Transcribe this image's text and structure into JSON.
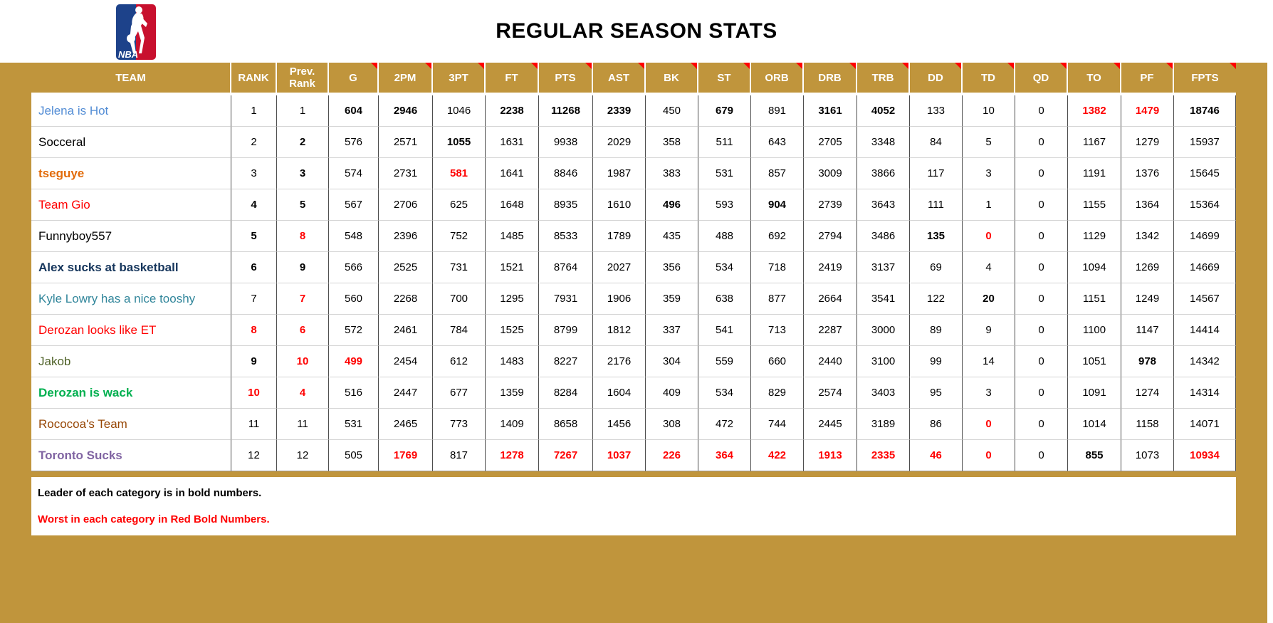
{
  "title": "REGULAR SEASON STATS",
  "logo": {
    "name": "NBA",
    "blue": "#1D428A",
    "red": "#C8102E"
  },
  "colors": {
    "gold": "#C0953C",
    "red": "#FF0000",
    "header_text": "#FFFFFF"
  },
  "notes": {
    "leader": "Leader of each category is in bold numbers.",
    "worst": "Worst in each category in Red Bold Numbers."
  },
  "table": {
    "columns": [
      {
        "label": "TEAM",
        "marker": false
      },
      {
        "label": "RANK",
        "marker": false
      },
      {
        "label": "Prev. Rank",
        "marker": false
      },
      {
        "label": "G",
        "marker": true
      },
      {
        "label": "2PM",
        "marker": true
      },
      {
        "label": "3PT",
        "marker": true
      },
      {
        "label": "FT",
        "marker": true
      },
      {
        "label": "PTS",
        "marker": true
      },
      {
        "label": "AST",
        "marker": true
      },
      {
        "label": "BK",
        "marker": true
      },
      {
        "label": "ST",
        "marker": true
      },
      {
        "label": "ORB",
        "marker": true
      },
      {
        "label": "DRB",
        "marker": true
      },
      {
        "label": "TRB",
        "marker": true
      },
      {
        "label": "DD",
        "marker": true
      },
      {
        "label": "TD",
        "marker": true
      },
      {
        "label": "QD",
        "marker": true
      },
      {
        "label": "TO",
        "marker": true
      },
      {
        "label": "PF",
        "marker": true
      },
      {
        "label": "FPTS",
        "marker": true
      }
    ],
    "style_legend": {
      "n": "normal",
      "b": "bold-leader",
      "rb": "red-bold-worst"
    },
    "rows": [
      {
        "team": "Jelena is Hot",
        "color": "#538DD5",
        "bold": false,
        "cells": [
          [
            "1",
            "n"
          ],
          [
            "1",
            "n"
          ],
          [
            "604",
            "b"
          ],
          [
            "2946",
            "b"
          ],
          [
            "1046",
            "n"
          ],
          [
            "2238",
            "b"
          ],
          [
            "11268",
            "b"
          ],
          [
            "2339",
            "b"
          ],
          [
            "450",
            "n"
          ],
          [
            "679",
            "b"
          ],
          [
            "891",
            "n"
          ],
          [
            "3161",
            "b"
          ],
          [
            "4052",
            "b"
          ],
          [
            "133",
            "n"
          ],
          [
            "10",
            "n"
          ],
          [
            "0",
            "n"
          ],
          [
            "1382",
            "rb"
          ],
          [
            "1479",
            "rb"
          ],
          [
            "18746",
            "b"
          ]
        ]
      },
      {
        "team": "Socceral",
        "color": "#000000",
        "bold": false,
        "cells": [
          [
            "2",
            "n"
          ],
          [
            "2",
            "b"
          ],
          [
            "576",
            "n"
          ],
          [
            "2571",
            "n"
          ],
          [
            "1055",
            "b"
          ],
          [
            "1631",
            "n"
          ],
          [
            "9938",
            "n"
          ],
          [
            "2029",
            "n"
          ],
          [
            "358",
            "n"
          ],
          [
            "511",
            "n"
          ],
          [
            "643",
            "n"
          ],
          [
            "2705",
            "n"
          ],
          [
            "3348",
            "n"
          ],
          [
            "84",
            "n"
          ],
          [
            "5",
            "n"
          ],
          [
            "0",
            "n"
          ],
          [
            "1167",
            "n"
          ],
          [
            "1279",
            "n"
          ],
          [
            "15937",
            "n"
          ]
        ]
      },
      {
        "team": "tseguye",
        "color": "#E26B0A",
        "bold": true,
        "cells": [
          [
            "3",
            "n"
          ],
          [
            "3",
            "b"
          ],
          [
            "574",
            "n"
          ],
          [
            "2731",
            "n"
          ],
          [
            "581",
            "rb"
          ],
          [
            "1641",
            "n"
          ],
          [
            "8846",
            "n"
          ],
          [
            "1987",
            "n"
          ],
          [
            "383",
            "n"
          ],
          [
            "531",
            "n"
          ],
          [
            "857",
            "n"
          ],
          [
            "3009",
            "n"
          ],
          [
            "3866",
            "n"
          ],
          [
            "117",
            "n"
          ],
          [
            "3",
            "n"
          ],
          [
            "0",
            "n"
          ],
          [
            "1191",
            "n"
          ],
          [
            "1376",
            "n"
          ],
          [
            "15645",
            "n"
          ]
        ]
      },
      {
        "team": "Team Gio",
        "color": "#FF0000",
        "bold": false,
        "cells": [
          [
            "4",
            "b"
          ],
          [
            "5",
            "b"
          ],
          [
            "567",
            "n"
          ],
          [
            "2706",
            "n"
          ],
          [
            "625",
            "n"
          ],
          [
            "1648",
            "n"
          ],
          [
            "8935",
            "n"
          ],
          [
            "1610",
            "n"
          ],
          [
            "496",
            "b"
          ],
          [
            "593",
            "n"
          ],
          [
            "904",
            "b"
          ],
          [
            "2739",
            "n"
          ],
          [
            "3643",
            "n"
          ],
          [
            "111",
            "n"
          ],
          [
            "1",
            "n"
          ],
          [
            "0",
            "n"
          ],
          [
            "1155",
            "n"
          ],
          [
            "1364",
            "n"
          ],
          [
            "15364",
            "n"
          ]
        ]
      },
      {
        "team": "Funnyboy557",
        "color": "#000000",
        "bold": false,
        "cells": [
          [
            "5",
            "b"
          ],
          [
            "8",
            "rb"
          ],
          [
            "548",
            "n"
          ],
          [
            "2396",
            "n"
          ],
          [
            "752",
            "n"
          ],
          [
            "1485",
            "n"
          ],
          [
            "8533",
            "n"
          ],
          [
            "1789",
            "n"
          ],
          [
            "435",
            "n"
          ],
          [
            "488",
            "n"
          ],
          [
            "692",
            "n"
          ],
          [
            "2794",
            "n"
          ],
          [
            "3486",
            "n"
          ],
          [
            "135",
            "b"
          ],
          [
            "0",
            "rb"
          ],
          [
            "0",
            "n"
          ],
          [
            "1129",
            "n"
          ],
          [
            "1342",
            "n"
          ],
          [
            "14699",
            "n"
          ]
        ]
      },
      {
        "team": "Alex sucks at basketball",
        "color": "#16365C",
        "bold": true,
        "cells": [
          [
            "6",
            "b"
          ],
          [
            "9",
            "b"
          ],
          [
            "566",
            "n"
          ],
          [
            "2525",
            "n"
          ],
          [
            "731",
            "n"
          ],
          [
            "1521",
            "n"
          ],
          [
            "8764",
            "n"
          ],
          [
            "2027",
            "n"
          ],
          [
            "356",
            "n"
          ],
          [
            "534",
            "n"
          ],
          [
            "718",
            "n"
          ],
          [
            "2419",
            "n"
          ],
          [
            "3137",
            "n"
          ],
          [
            "69",
            "n"
          ],
          [
            "4",
            "n"
          ],
          [
            "0",
            "n"
          ],
          [
            "1094",
            "n"
          ],
          [
            "1269",
            "n"
          ],
          [
            "14669",
            "n"
          ]
        ]
      },
      {
        "team": "Kyle Lowry has a nice tooshy",
        "color": "#31869B",
        "bold": false,
        "cells": [
          [
            "7",
            "n"
          ],
          [
            "7",
            "rb"
          ],
          [
            "560",
            "n"
          ],
          [
            "2268",
            "n"
          ],
          [
            "700",
            "n"
          ],
          [
            "1295",
            "n"
          ],
          [
            "7931",
            "n"
          ],
          [
            "1906",
            "n"
          ],
          [
            "359",
            "n"
          ],
          [
            "638",
            "n"
          ],
          [
            "877",
            "n"
          ],
          [
            "2664",
            "n"
          ],
          [
            "3541",
            "n"
          ],
          [
            "122",
            "n"
          ],
          [
            "20",
            "b"
          ],
          [
            "0",
            "n"
          ],
          [
            "1151",
            "n"
          ],
          [
            "1249",
            "n"
          ],
          [
            "14567",
            "n"
          ]
        ]
      },
      {
        "team": "Derozan looks like ET",
        "color": "#FF0000",
        "bold": false,
        "cells": [
          [
            "8",
            "rb"
          ],
          [
            "6",
            "rb"
          ],
          [
            "572",
            "n"
          ],
          [
            "2461",
            "n"
          ],
          [
            "784",
            "n"
          ],
          [
            "1525",
            "n"
          ],
          [
            "8799",
            "n"
          ],
          [
            "1812",
            "n"
          ],
          [
            "337",
            "n"
          ],
          [
            "541",
            "n"
          ],
          [
            "713",
            "n"
          ],
          [
            "2287",
            "n"
          ],
          [
            "3000",
            "n"
          ],
          [
            "89",
            "n"
          ],
          [
            "9",
            "n"
          ],
          [
            "0",
            "n"
          ],
          [
            "1100",
            "n"
          ],
          [
            "1147",
            "n"
          ],
          [
            "14414",
            "n"
          ]
        ]
      },
      {
        "team": "Jakob",
        "color": "#4F6228",
        "bold": false,
        "cells": [
          [
            "9",
            "b"
          ],
          [
            "10",
            "rb"
          ],
          [
            "499",
            "rb"
          ],
          [
            "2454",
            "n"
          ],
          [
            "612",
            "n"
          ],
          [
            "1483",
            "n"
          ],
          [
            "8227",
            "n"
          ],
          [
            "2176",
            "n"
          ],
          [
            "304",
            "n"
          ],
          [
            "559",
            "n"
          ],
          [
            "660",
            "n"
          ],
          [
            "2440",
            "n"
          ],
          [
            "3100",
            "n"
          ],
          [
            "99",
            "n"
          ],
          [
            "14",
            "n"
          ],
          [
            "0",
            "n"
          ],
          [
            "1051",
            "n"
          ],
          [
            "978",
            "b"
          ],
          [
            "14342",
            "n"
          ]
        ]
      },
      {
        "team": "Derozan is wack",
        "color": "#00B050",
        "bold": true,
        "cells": [
          [
            "10",
            "rb"
          ],
          [
            "4",
            "rb"
          ],
          [
            "516",
            "n"
          ],
          [
            "2447",
            "n"
          ],
          [
            "677",
            "n"
          ],
          [
            "1359",
            "n"
          ],
          [
            "8284",
            "n"
          ],
          [
            "1604",
            "n"
          ],
          [
            "409",
            "n"
          ],
          [
            "534",
            "n"
          ],
          [
            "829",
            "n"
          ],
          [
            "2574",
            "n"
          ],
          [
            "3403",
            "n"
          ],
          [
            "95",
            "n"
          ],
          [
            "3",
            "n"
          ],
          [
            "0",
            "n"
          ],
          [
            "1091",
            "n"
          ],
          [
            "1274",
            "n"
          ],
          [
            "14314",
            "n"
          ]
        ]
      },
      {
        "team": "Rococoa's Team",
        "color": "#974706",
        "bold": false,
        "cells": [
          [
            "11",
            "n"
          ],
          [
            "11",
            "n"
          ],
          [
            "531",
            "n"
          ],
          [
            "2465",
            "n"
          ],
          [
            "773",
            "n"
          ],
          [
            "1409",
            "n"
          ],
          [
            "8658",
            "n"
          ],
          [
            "1456",
            "n"
          ],
          [
            "308",
            "n"
          ],
          [
            "472",
            "n"
          ],
          [
            "744",
            "n"
          ],
          [
            "2445",
            "n"
          ],
          [
            "3189",
            "n"
          ],
          [
            "86",
            "n"
          ],
          [
            "0",
            "rb"
          ],
          [
            "0",
            "n"
          ],
          [
            "1014",
            "n"
          ],
          [
            "1158",
            "n"
          ],
          [
            "14071",
            "n"
          ]
        ]
      },
      {
        "team": "Toronto Sucks",
        "color": "#8064A2",
        "bold": true,
        "cells": [
          [
            "12",
            "n"
          ],
          [
            "12",
            "n"
          ],
          [
            "505",
            "n"
          ],
          [
            "1769",
            "rb"
          ],
          [
            "817",
            "n"
          ],
          [
            "1278",
            "rb"
          ],
          [
            "7267",
            "rb"
          ],
          [
            "1037",
            "rb"
          ],
          [
            "226",
            "rb"
          ],
          [
            "364",
            "rb"
          ],
          [
            "422",
            "rb"
          ],
          [
            "1913",
            "rb"
          ],
          [
            "2335",
            "rb"
          ],
          [
            "46",
            "rb"
          ],
          [
            "0",
            "rb"
          ],
          [
            "0",
            "n"
          ],
          [
            "855",
            "b"
          ],
          [
            "1073",
            "n"
          ],
          [
            "10934",
            "rb"
          ]
        ]
      }
    ]
  }
}
